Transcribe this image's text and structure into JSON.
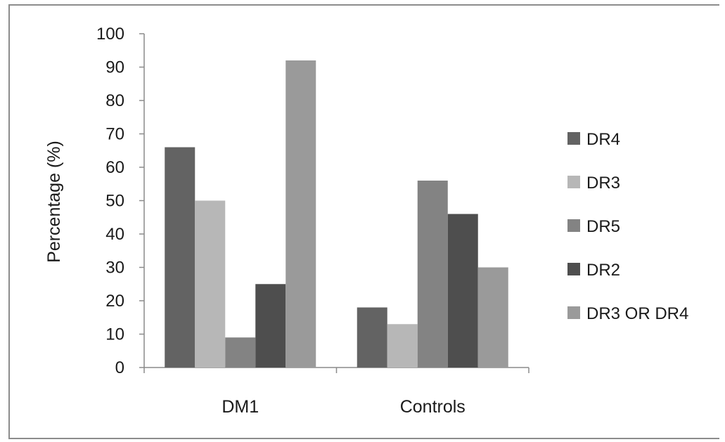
{
  "chart_data": {
    "type": "bar",
    "title": "",
    "xlabel": "",
    "ylabel": "Percentage (%)",
    "ylim": [
      0,
      100
    ],
    "yticks": [
      0,
      10,
      20,
      30,
      40,
      50,
      60,
      70,
      80,
      90,
      100
    ],
    "categories": [
      "DM1",
      "Controls"
    ],
    "series": [
      {
        "name": "DR4",
        "color": "#636363",
        "values": [
          66,
          18
        ]
      },
      {
        "name": "DR3",
        "color": "#b7b7b7",
        "values": [
          50,
          13
        ]
      },
      {
        "name": "DR5",
        "color": "#838383",
        "values": [
          9,
          56
        ]
      },
      {
        "name": "DR2",
        "color": "#4e4e4e",
        "values": [
          25,
          46
        ]
      },
      {
        "name": "DR3 OR DR4",
        "color": "#9a9a9a",
        "values": [
          92,
          30
        ]
      }
    ],
    "grid": false,
    "legend_position": "right"
  }
}
